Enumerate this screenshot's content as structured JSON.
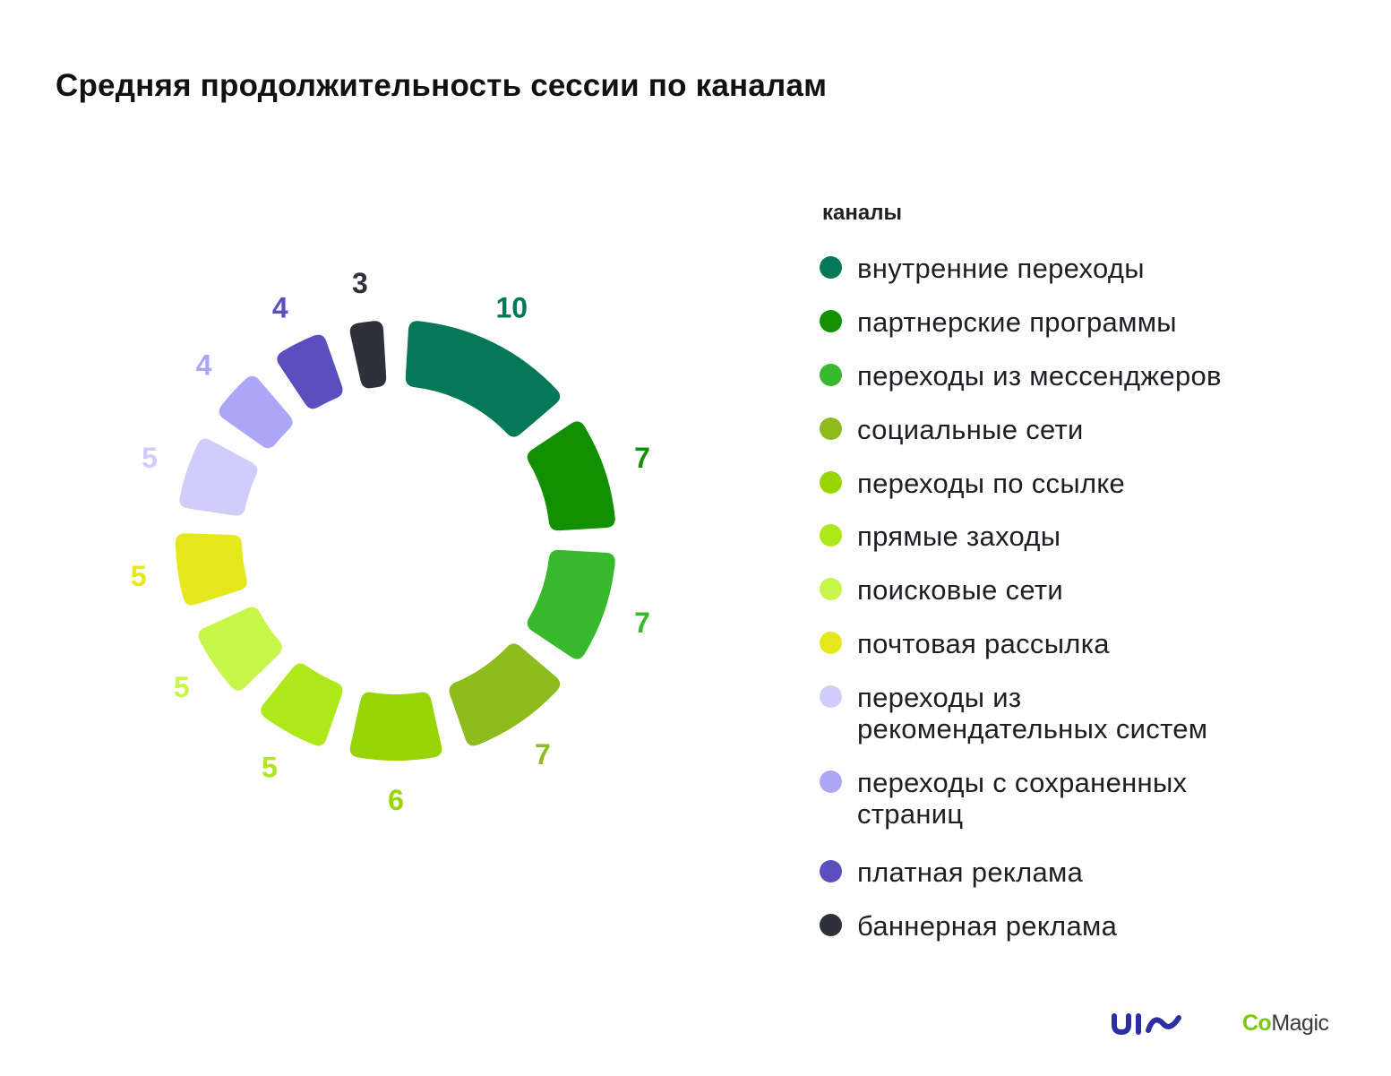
{
  "title": "Средняя продолжительность сессии по каналам",
  "legend_title": "каналы",
  "chart_data": {
    "type": "pie",
    "style": "donut",
    "title": "Средняя продолжительность сессии по каналам",
    "legend_title": "каналы",
    "legend_position": "right",
    "series": [
      {
        "label": "внутренние переходы",
        "value": 10,
        "color": "#047857"
      },
      {
        "label": "партнерские программы",
        "value": 7,
        "color": "#129002"
      },
      {
        "label": "переходы из мессенджеров",
        "value": 7,
        "color": "#38b82d"
      },
      {
        "label": "социальные сети",
        "value": 7,
        "color": "#8cbc1d"
      },
      {
        "label": "переходы по ссылке",
        "value": 6,
        "color": "#96d404"
      },
      {
        "label": "прямые заходы",
        "value": 5,
        "color": "#aee81a"
      },
      {
        "label": "поисковые сети",
        "value": 5,
        "color": "#c6f64a"
      },
      {
        "label": "почтовая рассылка",
        "value": 5,
        "color": "#e4e81c"
      },
      {
        "label": "переходы из рекомендательных систем",
        "value": 5,
        "color": "#d1cdfb"
      },
      {
        "label": "переходы с сохраненных страниц",
        "value": 4,
        "color": "#aca6f6"
      },
      {
        "label": "платная реклама",
        "value": 4,
        "color": "#5a4fbf"
      },
      {
        "label": "баннерная реклама",
        "value": 3,
        "color": "#2f313a"
      }
    ]
  },
  "legend": [
    {
      "lines": [
        "внутренние переходы"
      ]
    },
    {
      "lines": [
        "партнерские программы"
      ]
    },
    {
      "lines": [
        "переходы из мессенджеров"
      ]
    },
    {
      "lines": [
        "социальные сети"
      ]
    },
    {
      "lines": [
        "переходы по ссылке"
      ]
    },
    {
      "lines": [
        "прямые заходы"
      ]
    },
    {
      "lines": [
        "поисковые сети"
      ]
    },
    {
      "lines": [
        "почтовая рассылка"
      ]
    },
    {
      "lines": [
        "переходы из",
        "рекомендательных систем"
      ]
    },
    {
      "lines": [
        "переходы с сохраненных",
        "страниц"
      ]
    },
    {
      "lines": [
        "платная реклама"
      ]
    },
    {
      "lines": [
        "баннерная реклама"
      ]
    }
  ],
  "logos": {
    "uis": "uis",
    "comagic_co": "Co",
    "comagic_magic": "Magic"
  }
}
